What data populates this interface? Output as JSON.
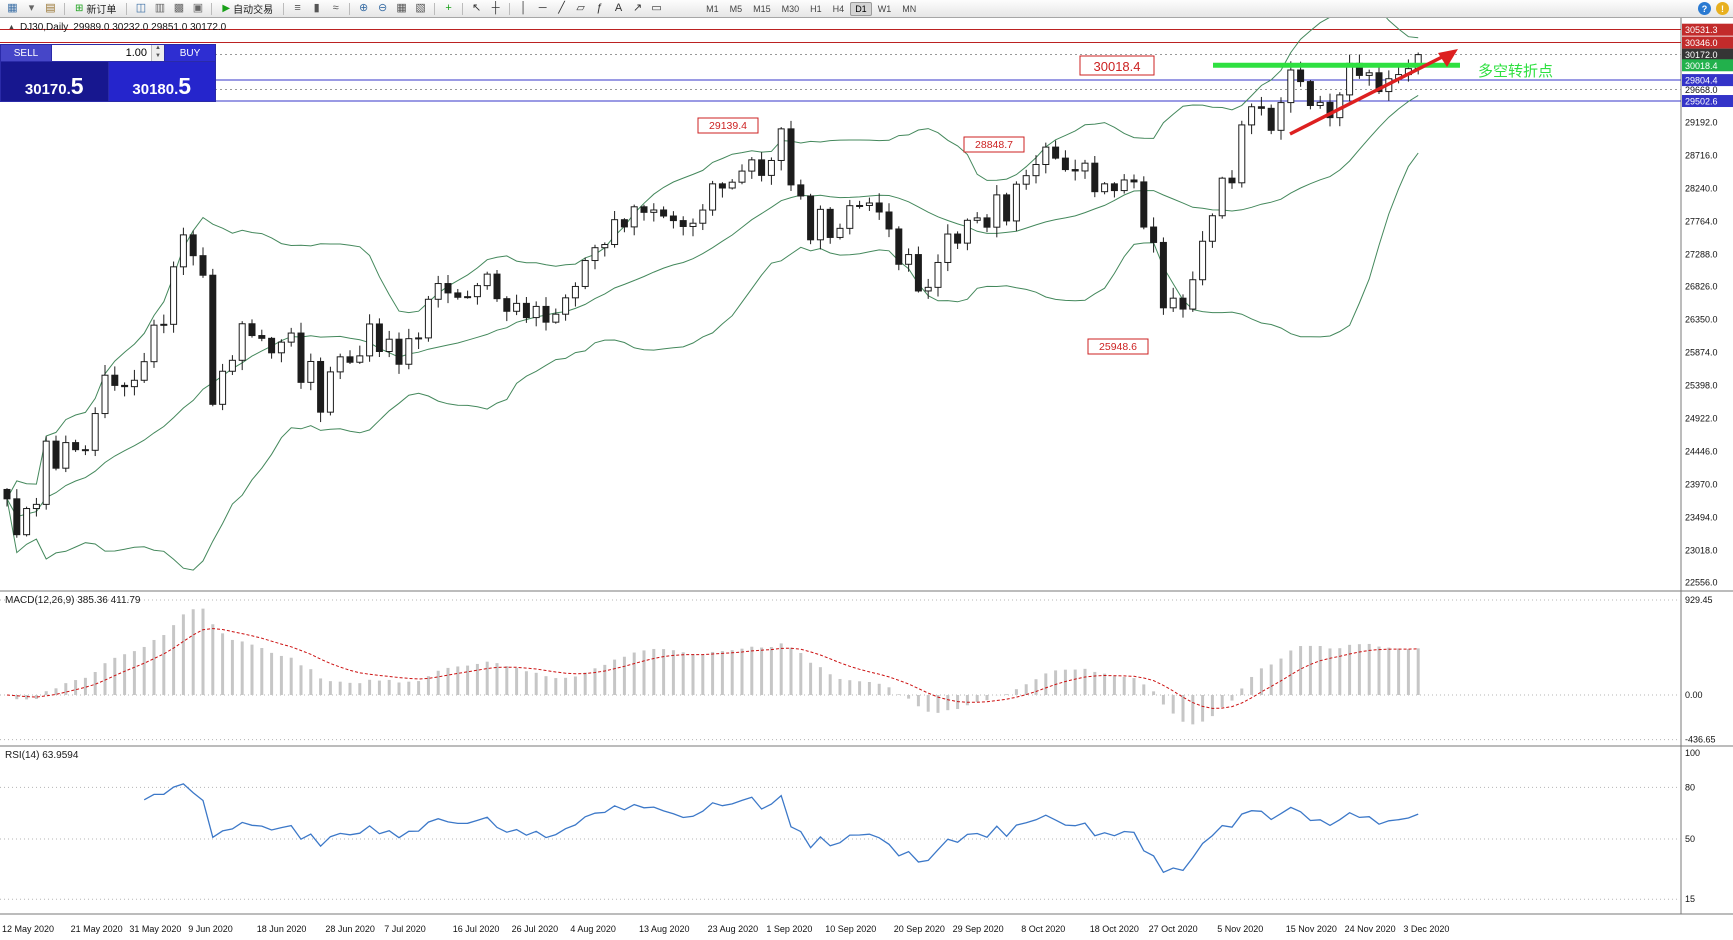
{
  "toolbar": {
    "items": [
      {
        "t": "icon",
        "name": "new-chart-icon",
        "g": "▦",
        "c": "#3a6ea5"
      },
      {
        "t": "icon",
        "name": "chart-dropdown-icon",
        "g": "▾",
        "c": "#666666"
      },
      {
        "t": "icon",
        "name": "profiles-icon",
        "g": "▤",
        "c": "#96722e"
      },
      {
        "t": "sep"
      },
      {
        "t": "button",
        "name": "new-order-button",
        "g": "⊞",
        "c": "#18a018",
        "label": "新订单"
      },
      {
        "t": "sep"
      },
      {
        "t": "icon",
        "name": "market-watch-icon",
        "g": "◫",
        "c": "#3a6ea5"
      },
      {
        "t": "icon",
        "name": "data-window-icon",
        "g": "▥",
        "c": "#666666"
      },
      {
        "t": "icon",
        "name": "navigator-icon",
        "g": "▩",
        "c": "#666666"
      },
      {
        "t": "icon",
        "name": "terminal-icon",
        "g": "▣",
        "c": "#666666"
      },
      {
        "t": "sep"
      },
      {
        "t": "button",
        "name": "auto-trading-button",
        "g": "▶",
        "c": "#18a018",
        "label": "自动交易"
      },
      {
        "t": "sep"
      },
      {
        "t": "icon",
        "name": "bar-chart-icon",
        "g": "≡",
        "c": "#555555"
      },
      {
        "t": "icon",
        "name": "candlestick-chart-icon",
        "g": "▮",
        "c": "#555555"
      },
      {
        "t": "icon",
        "name": "line-chart-icon",
        "g": "≈",
        "c": "#555555"
      },
      {
        "t": "sep"
      },
      {
        "t": "icon",
        "name": "zoom-in-icon",
        "g": "⊕",
        "c": "#3a6ea5"
      },
      {
        "t": "icon",
        "name": "zoom-out-icon",
        "g": "⊖",
        "c": "#3a6ea5"
      },
      {
        "t": "icon",
        "name": "tile-windows-icon",
        "g": "▦",
        "c": "#555555"
      },
      {
        "t": "icon",
        "name": "cascade-windows-icon",
        "g": "▧",
        "c": "#555555"
      },
      {
        "t": "sep"
      },
      {
        "t": "icon",
        "name": "indicators-icon",
        "g": "+",
        "c": "#18a018"
      },
      {
        "t": "sep"
      },
      {
        "t": "icon",
        "name": "cursor-icon",
        "g": "↖",
        "c": "#333333"
      },
      {
        "t": "icon",
        "name": "crosshair-icon",
        "g": "┼",
        "c": "#333333"
      },
      {
        "t": "sep"
      },
      {
        "t": "icon",
        "name": "vertical-line-icon",
        "g": "│",
        "c": "#333333"
      },
      {
        "t": "icon",
        "name": "horizontal-line-icon",
        "g": "─",
        "c": "#333333"
      },
      {
        "t": "icon",
        "name": "trendline-icon",
        "g": "╱",
        "c": "#333333"
      },
      {
        "t": "icon",
        "name": "channel-icon",
        "g": "▱",
        "c": "#333333"
      },
      {
        "t": "icon",
        "name": "fibonacci-icon",
        "g": "ƒ",
        "c": "#333333"
      },
      {
        "t": "icon",
        "name": "text-tool-icon",
        "g": "A",
        "c": "#333333"
      },
      {
        "t": "icon",
        "name": "arrow-tool-icon",
        "g": "↗",
        "c": "#333333"
      },
      {
        "t": "icon",
        "name": "shapes-icon",
        "g": "▭",
        "c": "#333333"
      },
      {
        "t": "tfgroup"
      },
      {
        "t": "spacer"
      },
      {
        "t": "circle",
        "name": "help-icon",
        "g": "?",
        "c": "#ffffff",
        "bg": "#2a7ad2"
      },
      {
        "t": "circle",
        "name": "alert-icon",
        "g": "!",
        "c": "#ffffff",
        "bg": "#e8b020"
      }
    ],
    "timeframes": [
      "M1",
      "M5",
      "M15",
      "M30",
      "H1",
      "H4",
      "D1",
      "W1",
      "MN"
    ],
    "active_timeframe": "D1"
  },
  "chart_header": {
    "symbol": "DJ30,Daily",
    "ohlc": "29989.0 30232.0 29851.0 30172.0"
  },
  "trade_panel": {
    "sell_label": "SELL",
    "buy_label": "BUY",
    "volume": "1.00",
    "sell_price_main": "30170.",
    "sell_price_big": "5",
    "buy_price_main": "30180.",
    "buy_price_big": "5"
  },
  "annotations": {
    "price_labels": [
      "30018.4",
      "29139.4",
      "28848.7",
      "25948.6"
    ],
    "turning_point_text": "多空转折点"
  },
  "price_axis": {
    "highlighted": [
      {
        "label": "30531.3",
        "price": 30531.3,
        "bg": "#c22b2b",
        "fg": "#ffffff"
      },
      {
        "label": "30346.0",
        "price": 30346.0,
        "bg": "#c22b2b",
        "fg": "#ffffff"
      },
      {
        "label": "30172.0",
        "price": 30172.0,
        "bg": "#353535",
        "fg": "#ffffff"
      },
      {
        "label": "30018.4",
        "price": 30018.4,
        "bg": "#22b14c",
        "fg": "#ffffff"
      },
      {
        "label": "29804.4",
        "price": 29804.4,
        "bg": "#3434c8",
        "fg": "#ffffff"
      },
      {
        "label": "29668.0",
        "price": 29668.0,
        "bg": "#ffffff",
        "fg": "#111111"
      },
      {
        "label": "29502.6",
        "price": 29502.6,
        "bg": "#3434c8",
        "fg": "#ffffff"
      }
    ],
    "plain": [
      "29192.0",
      "28716.0",
      "28240.0",
      "27764.0",
      "27288.0",
      "26826.0",
      "26350.0",
      "25874.0",
      "25398.0",
      "24922.0",
      "24446.0",
      "23970.0",
      "23494.0",
      "23018.0",
      "22556.0"
    ]
  },
  "macd_panel": {
    "label": "MACD(12,26,9) 385.36 411.79",
    "scale": [
      {
        "label": "929.45",
        "v": 929.45
      },
      {
        "label": "0.00",
        "v": 0
      },
      {
        "label": "-436.65",
        "v": -436.65
      }
    ]
  },
  "rsi_panel": {
    "label": "RSI(14) 63.9594",
    "scale": [
      {
        "label": "100",
        "v": 100
      },
      {
        "label": "80",
        "v": 80
      },
      {
        "label": "50",
        "v": 50
      },
      {
        "label": "15",
        "v": 15
      }
    ]
  },
  "date_axis": {
    "labels": [
      "12 May 2020",
      "21 May 2020",
      "31 May 2020",
      "9 Jun 2020",
      "18 Jun 2020",
      "28 Jun 2020",
      "7 Jul 2020",
      "16 Jul 2020",
      "26 Jul 2020",
      "4 Aug 2020",
      "13 Aug 2020",
      "23 Aug 2020",
      "1 Sep 2020",
      "10 Sep 2020",
      "20 Sep 2020",
      "29 Sep 2020",
      "8 Oct 2020",
      "18 Oct 2020",
      "27 Oct 2020",
      "5 Nov 2020",
      "15 Nov 2020",
      "24 Nov 2020",
      "3 Dec 2020"
    ],
    "indices": [
      0,
      7,
      13,
      19,
      26,
      33,
      39,
      46,
      52,
      58,
      65,
      72,
      78,
      84,
      91,
      97,
      104,
      111,
      117,
      124,
      131,
      137,
      143
    ]
  },
  "chart_data": {
    "type": "candlestick",
    "symbol": "DJ30",
    "timeframe": "Daily",
    "price_range": [
      22450,
      30700
    ],
    "closes": [
      23765,
      23248,
      23625,
      23685,
      24597,
      24207,
      24576,
      24474,
      24465,
      24995,
      25548,
      25401,
      25383,
      25475,
      25743,
      26270,
      26282,
      27111,
      27572,
      27272,
      26990,
      25128,
      25605,
      25763,
      26290,
      26120,
      26080,
      25871,
      26025,
      26156,
      25445,
      25746,
      25015,
      25596,
      25813,
      25735,
      25827,
      26287,
      25890,
      26067,
      25706,
      26075,
      26086,
      26643,
      26870,
      26735,
      26672,
      26681,
      26840,
      27006,
      26652,
      26470,
      26584,
      26379,
      26540,
      26313,
      26428,
      26664,
      26828,
      27202,
      27387,
      27433,
      27791,
      27687,
      27977,
      27897,
      27931,
      27844,
      27778,
      27693,
      27740,
      27930,
      28308,
      28248,
      28332,
      28492,
      28654,
      28430,
      28645,
      29101,
      28293,
      28133,
      27501,
      27940,
      27535,
      27666,
      27993,
      27996,
      28032,
      27902,
      27657,
      27148,
      27288,
      26763,
      26815,
      27174,
      27584,
      27453,
      27782,
      27817,
      27683,
      28149,
      27773,
      28303,
      28426,
      28587,
      28838,
      28679,
      28514,
      28494,
      28606,
      28195,
      28308,
      28211,
      28364,
      28336,
      27685,
      27463,
      26520,
      26659,
      26502,
      26925,
      27480,
      27848,
      28390,
      28323,
      29158,
      29420,
      29397,
      29080,
      29480,
      29950,
      29783,
      29438,
      29483,
      29263,
      29591,
      30046,
      29872,
      29910,
      29639,
      29824,
      29884,
      29970,
      30172
    ],
    "open_first": 23900,
    "indicators": {
      "bollinger": {
        "period": 20,
        "deviation": 2
      },
      "macd": [
        12,
        26,
        9
      ],
      "rsi": 14
    },
    "levels": {
      "red": [
        30531.3,
        30346.0
      ],
      "blue": [
        29804.4,
        29502.6
      ],
      "gray_dashed": 29668.0,
      "current_dashed": 30172.0,
      "green_segment_price": 30018.4
    },
    "colors": {
      "bollinger": "#44885c",
      "candle": "#1c1c1c",
      "green_line": "#2ee040",
      "red_arrow": "#dd2020",
      "macd_hist": "#c6c6c6",
      "macd_signal": "#cc1111",
      "rsi_line": "#3c78c8",
      "label_red": "#cc2222"
    }
  }
}
